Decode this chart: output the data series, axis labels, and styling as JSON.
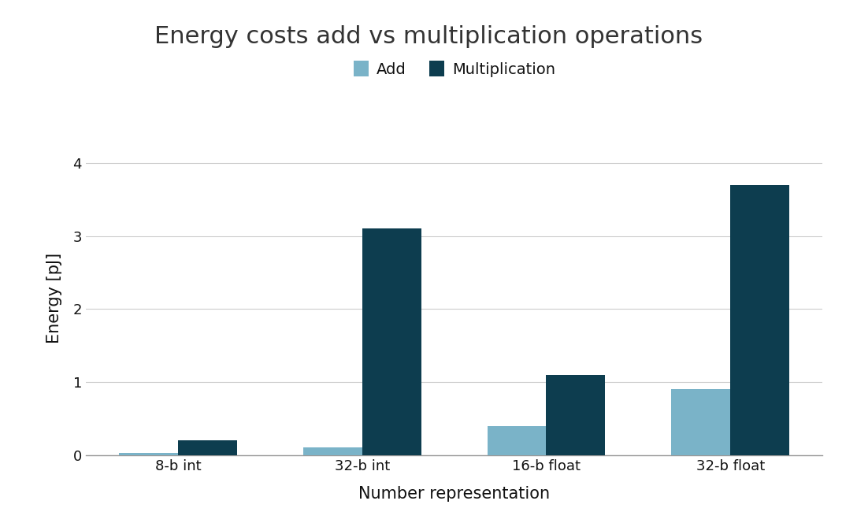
{
  "title": "Energy costs add vs multiplication operations",
  "xlabel": "Number representation",
  "ylabel": "Energy [pJ]",
  "categories": [
    "8-b int",
    "32-b int",
    "16-b float",
    "32-b float"
  ],
  "add_values": [
    0.03,
    0.1,
    0.4,
    0.9
  ],
  "mult_values": [
    0.2,
    3.1,
    1.1,
    3.7
  ],
  "add_color": "#7ab3c8",
  "mult_color": "#0d3d4f",
  "ylim": [
    0,
    4.3
  ],
  "yticks": [
    0,
    1,
    2,
    3,
    4
  ],
  "legend_labels": [
    "Add",
    "Multiplication"
  ],
  "background_color": "#ffffff",
  "title_fontsize": 22,
  "label_fontsize": 15,
  "tick_fontsize": 13,
  "legend_fontsize": 14,
  "bar_width": 0.32,
  "grid_color": "#cccccc",
  "text_color": "#333333",
  "axis_text_color": "#111111"
}
